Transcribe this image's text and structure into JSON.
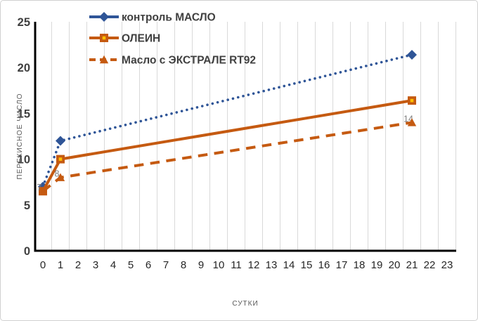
{
  "chart_data": {
    "type": "line",
    "title": "",
    "xlabel": "СУТКИ",
    "ylabel": "ПЕРЕКИСНОЕ ЧИСЛО",
    "ylim": [
      0,
      25
    ],
    "yticks": [
      0,
      5,
      10,
      15,
      20,
      25
    ],
    "xticks": [
      0,
      1,
      2,
      3,
      4,
      5,
      6,
      7,
      8,
      9,
      10,
      11,
      12,
      13,
      14,
      15,
      16,
      17,
      18,
      19,
      20,
      21,
      22,
      23
    ],
    "grid": "vertical-only",
    "legend_position": "top-left-overlay",
    "series": [
      {
        "name": "контроль МАСЛО",
        "color": "#2F5597",
        "line_style": "dotted",
        "marker": "diamond",
        "x": [
          0,
          1,
          21
        ],
        "y": [
          7,
          12,
          21.4
        ]
      },
      {
        "name": "ОЛЕИН",
        "color": "#C55A11",
        "line_style": "solid",
        "marker": "square",
        "marker_inner": "#FFC000",
        "x": [
          0,
          1,
          21
        ],
        "y": [
          6.5,
          10,
          16.4
        ]
      },
      {
        "name": "Масло с ЭКСТРАЛЕ RT92",
        "color": "#C55A11",
        "line_style": "dashed",
        "marker": "triangle",
        "x": [
          0,
          1,
          21
        ],
        "y": [
          6.5,
          8,
          14
        ],
        "data_labels": [
          "7",
          "8",
          "14"
        ]
      }
    ],
    "colors": {
      "grid": "#D9D9D9",
      "axis": "#000000",
      "y_tick_label": "#404040",
      "x_tick_label": "#262626",
      "axis_title": "#595959",
      "legend_text": "#404040",
      "data_label": "#7F7F7F"
    }
  },
  "frame": {
    "background": "#FFFFFF",
    "border": "#D0D0D0"
  }
}
